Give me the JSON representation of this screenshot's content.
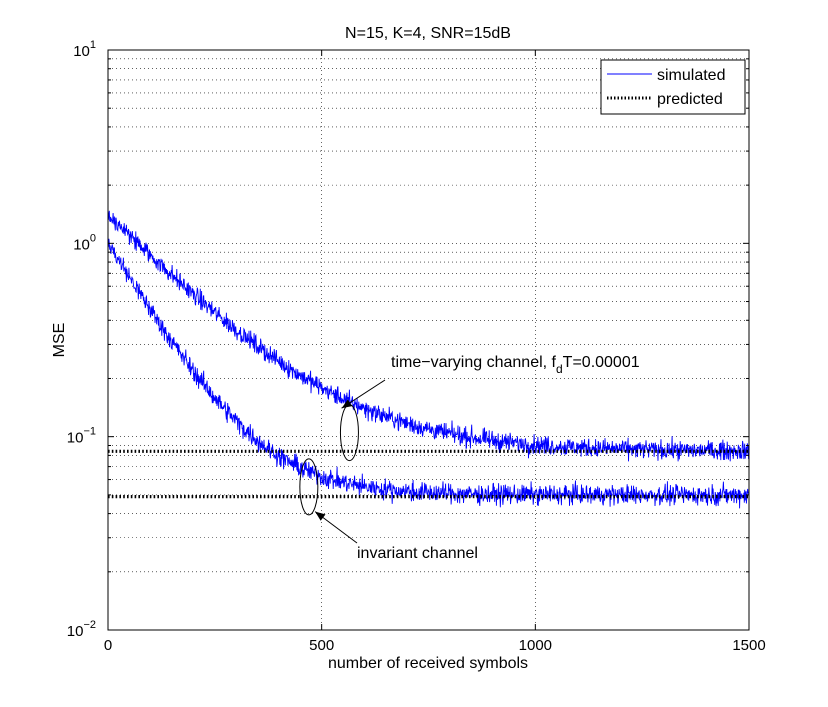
{
  "chart_data": {
    "type": "line",
    "title": "N=15, K=4, SNR=15dB",
    "xlabel": "number of received symbols",
    "ylabel": "MSE",
    "xlim": [
      0,
      1500
    ],
    "ylim": [
      0.01,
      10
    ],
    "yscale": "log",
    "grid": true,
    "legend_position": "top-right",
    "x_ticks": [
      {
        "value": 0,
        "label": "0"
      },
      {
        "value": 500,
        "label": "500"
      },
      {
        "value": 1000,
        "label": "1000"
      },
      {
        "value": 1500,
        "label": "1500"
      }
    ],
    "y_ticks": [
      {
        "value": 0.01,
        "base": "10",
        "exp": "−2"
      },
      {
        "value": 0.1,
        "base": "10",
        "exp": "−1"
      },
      {
        "value": 1,
        "base": "10",
        "exp": "0"
      },
      {
        "value": 10,
        "base": "10",
        "exp": "1"
      }
    ],
    "legend": [
      {
        "label": "simulated",
        "style": "solid",
        "color": "#0000ff"
      },
      {
        "label": "predicted",
        "style": "dotted",
        "color": "#000000"
      }
    ],
    "series": [
      {
        "name": "simulated time-varying channel",
        "style": "solid",
        "color": "#0000ff",
        "start": 1.4,
        "floor": 0.084,
        "decay": 190,
        "noise": 0.08
      },
      {
        "name": "simulated invariant channel",
        "style": "solid",
        "color": "#0000ff",
        "start": 1.0,
        "floor": 0.05,
        "decay": 115,
        "noise": 0.085
      },
      {
        "name": "predicted time-varying channel",
        "style": "dotted",
        "color": "#000000",
        "x": [
          0,
          1500
        ],
        "y": [
          0.084,
          0.084
        ]
      },
      {
        "name": "predicted invariant channel",
        "style": "dotted",
        "color": "#000000",
        "x": [
          0,
          1500
        ],
        "y": [
          0.049,
          0.049
        ]
      }
    ],
    "annotations": {
      "time_varying": {
        "prefix": "time−varying channel, f",
        "sub": "d",
        "suffix": "T=0.00001",
        "arrow_to": [
          570,
          0.108
        ]
      },
      "invariant": {
        "text": "invariant channel",
        "arrow_to": [
          480,
          0.044
        ]
      }
    },
    "ellipses": [
      {
        "x": 565,
        "y": 0.105
      },
      {
        "x": 470,
        "y": 0.055
      }
    ]
  },
  "colors": {
    "simulated": "#0000ff",
    "predicted": "#000000",
    "grid": "#000000"
  }
}
